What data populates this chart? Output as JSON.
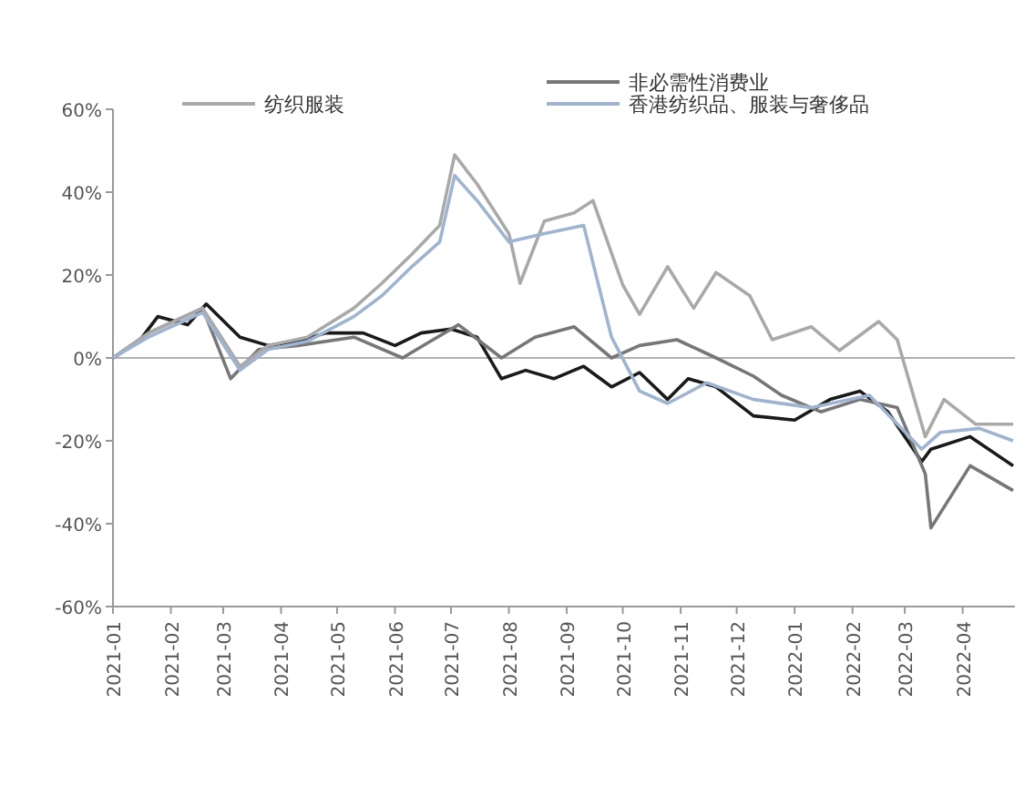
{
  "chart_data": {
    "type": "line",
    "xlim": [
      "2021-01-01",
      "2022-04-29"
    ],
    "xticks": [
      "2021-01",
      "2021-02",
      "2021-03",
      "2021-04",
      "2021-05",
      "2021-06",
      "2021-07",
      "2021-08",
      "2021-09",
      "2021-10",
      "2021-11",
      "2021-12",
      "2022-01",
      "2022-02",
      "2022-03",
      "2022-04"
    ],
    "ylim": [
      -60,
      60
    ],
    "yticks": [
      {
        "value": 60,
        "label": "60%"
      },
      {
        "value": 40,
        "label": "40%"
      },
      {
        "value": 20,
        "label": "20%"
      },
      {
        "value": 0,
        "label": "0%"
      },
      {
        "value": -20,
        "label": "-20%"
      },
      {
        "value": -40,
        "label": "-40%"
      },
      {
        "value": -60,
        "label": "-60%"
      }
    ],
    "legend": "top",
    "grid": false,
    "ref_lines": [
      {
        "axis": "y",
        "value": 0,
        "color": "#b0b0b0"
      }
    ],
    "series": [
      {
        "color": "#1a1a1a",
        "x": [
          "2021-01-01",
          "2021-01-15",
          "2021-01-25",
          "2021-02-10",
          "2021-02-20",
          "2021-03-10",
          "2021-03-25",
          "2021-04-10",
          "2021-04-25",
          "2021-05-15",
          "2021-06-01",
          "2021-06-15",
          "2021-07-01",
          "2021-07-15",
          "2021-07-28",
          "2021-08-10",
          "2021-08-25",
          "2021-09-10",
          "2021-09-25",
          "2021-10-10",
          "2021-10-25",
          "2021-11-05",
          "2021-11-20",
          "2021-12-10",
          "2022-01-01",
          "2022-01-20",
          "2022-02-05",
          "2022-02-20",
          "2022-03-10",
          "2022-03-15",
          "2022-04-05",
          "2022-04-28"
        ],
        "values": [
          0,
          4,
          10,
          8,
          13,
          5,
          3,
          4,
          6,
          6,
          3,
          6,
          7,
          5,
          -5,
          -3,
          -5,
          -2,
          -7,
          -3.5,
          -10,
          -5,
          -7,
          -14,
          -15,
          -10,
          -8,
          -13,
          -25,
          -22,
          -19,
          -26
        ]
      },
      {
        "name": "非必需性消费业",
        "color": "#777777",
        "x": [
          "2021-01-01",
          "2021-01-20",
          "2021-02-18",
          "2021-03-05",
          "2021-03-20",
          "2021-04-10",
          "2021-05-10",
          "2021-06-05",
          "2021-06-20",
          "2021-07-05",
          "2021-07-28",
          "2021-08-15",
          "2021-09-05",
          "2021-09-25",
          "2021-10-10",
          "2021-10-30",
          "2021-11-20",
          "2021-12-10",
          "2021-12-25",
          "2022-01-15",
          "2022-02-05",
          "2022-02-25",
          "2022-03-12",
          "2022-03-15",
          "2022-04-05",
          "2022-04-28"
        ],
        "values": [
          0,
          6,
          12,
          -5,
          2,
          3,
          5,
          0,
          4,
          8,
          0,
          5,
          7.5,
          0,
          3,
          4.4,
          0,
          -4.4,
          -9,
          -13,
          -10,
          -12,
          -28,
          -41,
          -26,
          -32
        ]
      },
      {
        "name": "纺织服装",
        "color": "#a9a9a9",
        "x": [
          "2021-01-01",
          "2021-01-20",
          "2021-02-18",
          "2021-03-10",
          "2021-03-25",
          "2021-04-15",
          "2021-05-10",
          "2021-05-25",
          "2021-06-10",
          "2021-06-25",
          "2021-07-03",
          "2021-07-15",
          "2021-08-01",
          "2021-08-07",
          "2021-08-20",
          "2021-09-05",
          "2021-09-15",
          "2021-10-01",
          "2021-10-10",
          "2021-10-25",
          "2021-11-08",
          "2021-11-20",
          "2021-12-08",
          "2021-12-20",
          "2022-01-10",
          "2022-01-25",
          "2022-02-15",
          "2022-02-25",
          "2022-03-12",
          "2022-03-22",
          "2022-04-08",
          "2022-04-28"
        ],
        "values": [
          0,
          6,
          12,
          -2,
          3,
          5,
          12,
          18,
          25,
          32,
          49,
          42,
          30,
          18,
          33,
          35,
          38,
          17.6,
          10.5,
          22,
          12,
          20.6,
          15,
          4.4,
          7.5,
          1.8,
          8.8,
          4.4,
          -19,
          -10,
          -16,
          -16
        ]
      },
      {
        "name": "香港纺织品、服装与奢侈品",
        "color": "#9fb4d0",
        "x": [
          "2021-01-01",
          "2021-01-20",
          "2021-02-18",
          "2021-03-10",
          "2021-03-25",
          "2021-04-15",
          "2021-05-10",
          "2021-05-25",
          "2021-06-10",
          "2021-06-25",
          "2021-07-03",
          "2021-07-15",
          "2021-08-01",
          "2021-08-20",
          "2021-09-10",
          "2021-09-25",
          "2021-10-10",
          "2021-10-25",
          "2021-11-15",
          "2021-12-10",
          "2022-01-10",
          "2022-02-10",
          "2022-03-10",
          "2022-03-20",
          "2022-04-10",
          "2022-04-28"
        ],
        "values": [
          0,
          5,
          11,
          -3,
          2,
          4,
          10,
          15,
          22,
          28,
          44,
          38,
          28,
          30,
          32,
          5,
          -8,
          -11,
          -6,
          -10,
          -12,
          -9,
          -22,
          -18,
          -17,
          -20
        ]
      }
    ]
  }
}
